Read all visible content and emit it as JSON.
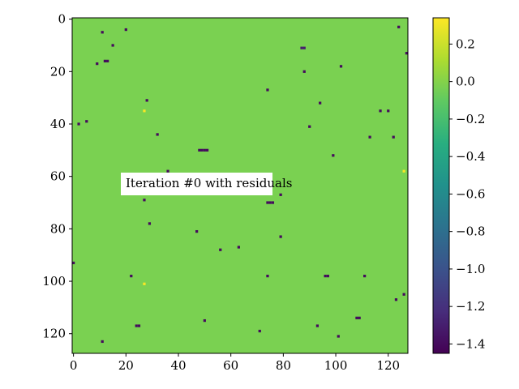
{
  "chart_data": [
    {
      "type": "heatmap",
      "title": "",
      "xlabel": "",
      "ylabel": "",
      "grid": false,
      "xlim": [
        -0.5,
        127.5
      ],
      "ylim": [
        127.5,
        -0.5
      ],
      "x_ticks": [
        "0",
        "20",
        "40",
        "60",
        "80",
        "100",
        "120"
      ],
      "y_ticks": [
        "0",
        "20",
        "40",
        "60",
        "80",
        "100",
        "120"
      ],
      "background_value": 0.0,
      "annotation": "Iteration #0 with residuals",
      "cells": [
        {
          "x": 11,
          "y": 5,
          "v": -1.4
        },
        {
          "x": 20,
          "y": 4,
          "v": -1.4
        },
        {
          "x": 15,
          "y": 10,
          "v": -1.4
        },
        {
          "x": 124,
          "y": 3,
          "v": -1.4
        },
        {
          "x": 127,
          "y": 13,
          "v": -1.4
        },
        {
          "x": 87,
          "y": 11,
          "v": -1.3
        },
        {
          "x": 88,
          "y": 11,
          "v": -1.3
        },
        {
          "x": 9,
          "y": 17,
          "v": -1.4
        },
        {
          "x": 12,
          "y": 16,
          "v": -1.4
        },
        {
          "x": 13,
          "y": 16,
          "v": -1.4
        },
        {
          "x": 102,
          "y": 18,
          "v": -1.4
        },
        {
          "x": 88,
          "y": 20,
          "v": -1.4
        },
        {
          "x": 74,
          "y": 27,
          "v": -1.4
        },
        {
          "x": 28,
          "y": 31,
          "v": -1.4
        },
        {
          "x": 94,
          "y": 32,
          "v": -1.4
        },
        {
          "x": 27,
          "y": 35,
          "v": 0.33
        },
        {
          "x": 117,
          "y": 35,
          "v": -1.4
        },
        {
          "x": 120,
          "y": 35,
          "v": -1.4
        },
        {
          "x": 5,
          "y": 39,
          "v": -1.4
        },
        {
          "x": 2,
          "y": 40,
          "v": -1.4
        },
        {
          "x": 90,
          "y": 41,
          "v": -1.4
        },
        {
          "x": 32,
          "y": 44,
          "v": -1.4
        },
        {
          "x": 113,
          "y": 45,
          "v": -1.4
        },
        {
          "x": 122,
          "y": 45,
          "v": -1.4
        },
        {
          "x": 48,
          "y": 50,
          "v": -1.4
        },
        {
          "x": 49,
          "y": 50,
          "v": -1.4
        },
        {
          "x": 50,
          "y": 50,
          "v": -1.4
        },
        {
          "x": 51,
          "y": 50,
          "v": -1.4
        },
        {
          "x": 99,
          "y": 52,
          "v": -1.4
        },
        {
          "x": 36,
          "y": 58,
          "v": -1.4
        },
        {
          "x": 126,
          "y": 58,
          "v": 0.33
        },
        {
          "x": 79,
          "y": 67,
          "v": -1.4
        },
        {
          "x": 27,
          "y": 69,
          "v": -1.4
        },
        {
          "x": 74,
          "y": 70,
          "v": -1.4
        },
        {
          "x": 75,
          "y": 70,
          "v": -1.4
        },
        {
          "x": 76,
          "y": 70,
          "v": -1.4
        },
        {
          "x": 29,
          "y": 78,
          "v": -1.4
        },
        {
          "x": 47,
          "y": 81,
          "v": -1.4
        },
        {
          "x": 79,
          "y": 83,
          "v": -1.4
        },
        {
          "x": 63,
          "y": 87,
          "v": -1.4
        },
        {
          "x": 56,
          "y": 88,
          "v": -1.4
        },
        {
          "x": 0,
          "y": 93,
          "v": -1.4
        },
        {
          "x": 22,
          "y": 98,
          "v": -1.4
        },
        {
          "x": 74,
          "y": 98,
          "v": -1.4
        },
        {
          "x": 96,
          "y": 98,
          "v": -1.4
        },
        {
          "x": 97,
          "y": 98,
          "v": -1.4
        },
        {
          "x": 111,
          "y": 98,
          "v": -1.4
        },
        {
          "x": 27,
          "y": 101,
          "v": 0.33
        },
        {
          "x": 126,
          "y": 105,
          "v": -1.4
        },
        {
          "x": 123,
          "y": 107,
          "v": -1.4
        },
        {
          "x": 108,
          "y": 114,
          "v": -1.4
        },
        {
          "x": 109,
          "y": 114,
          "v": -1.4
        },
        {
          "x": 50,
          "y": 115,
          "v": -1.4
        },
        {
          "x": 24,
          "y": 117,
          "v": -1.4
        },
        {
          "x": 25,
          "y": 117,
          "v": -1.4
        },
        {
          "x": 93,
          "y": 117,
          "v": -1.4
        },
        {
          "x": 71,
          "y": 119,
          "v": -1.4
        },
        {
          "x": 101,
          "y": 121,
          "v": -1.4
        },
        {
          "x": 11,
          "y": 123,
          "v": -1.4
        }
      ],
      "colorbar": {
        "colormap": "viridis",
        "vmin": -1.45,
        "vmax": 0.34,
        "ticks": [
          "0.2",
          "0.0",
          "−0.2",
          "−0.4",
          "−0.6",
          "−0.8",
          "−1.0",
          "−1.2",
          "−1.4"
        ],
        "tick_values": [
          0.2,
          0.0,
          -0.2,
          -0.4,
          -0.6,
          -0.8,
          -1.0,
          -1.2,
          -1.4
        ]
      },
      "colors": {
        "background_cell": "#7ad151",
        "text": "#000000",
        "annotation_box": "#ffffff"
      }
    }
  ]
}
